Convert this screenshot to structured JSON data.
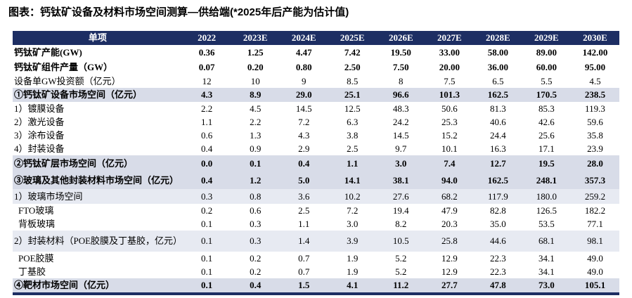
{
  "chart_data": {
    "type": "table",
    "title": "图表：钙钛矿设备及材料市场空间测算—供给端(*2025年后产能为估计值)",
    "columns": [
      "单项",
      "2022",
      "2023E",
      "2024E",
      "2025E",
      "2026E",
      "2027E",
      "2028E",
      "2029E",
      "2030E"
    ],
    "rows": [
      {
        "label": "钙钛矿产能(GW)",
        "values": [
          "0.36",
          "1.25",
          "4.47",
          "7.42",
          "19.50",
          "33.00",
          "58.00",
          "89.00",
          "142.00"
        ],
        "style": "bold"
      },
      {
        "label": "钙钛矿组件产量（GW）",
        "values": [
          "0.07",
          "0.20",
          "0.80",
          "2.50",
          "7.50",
          "20.00",
          "36.00",
          "60.00",
          "95.00"
        ],
        "style": "bold"
      },
      {
        "label": "设备单GW投资额（亿元）",
        "values": [
          "12",
          "10",
          "9",
          "8.5",
          "8",
          "7.5",
          "6.5",
          "5.5",
          "4.5"
        ],
        "style": "normal"
      },
      {
        "label": "①钙钛矿设备市场空间（亿元）",
        "values": [
          "4.3",
          "8.9",
          "29.0",
          "25.1",
          "96.6",
          "101.3",
          "162.5",
          "170.5",
          "238.5"
        ],
        "style": "section"
      },
      {
        "label": "1）镀膜设备",
        "values": [
          "2.2",
          "4.5",
          "14.5",
          "12.5",
          "48.3",
          "50.6",
          "81.3",
          "85.3",
          "119.3"
        ],
        "style": "normal"
      },
      {
        "label": "2）激光设备",
        "values": [
          "1.1",
          "2.2",
          "7.2",
          "6.3",
          "24.2",
          "25.3",
          "40.6",
          "42.6",
          "59.6"
        ],
        "style": "normal"
      },
      {
        "label": "3）涂布设备",
        "values": [
          "0.6",
          "1.3",
          "4.3",
          "3.8",
          "14.5",
          "15.2",
          "24.4",
          "25.6",
          "35.8"
        ],
        "style": "normal"
      },
      {
        "label": "4）封装设备",
        "values": [
          "0.4",
          "0.9",
          "2.9",
          "2.5",
          "9.7",
          "10.1",
          "16.3",
          "17.1",
          "23.9"
        ],
        "style": "normal"
      },
      {
        "label": "②钙钛矿层市场空间（亿元）",
        "values": [
          "0.0",
          "0.1",
          "0.4",
          "1.1",
          "3.0",
          "7.4",
          "12.7",
          "19.5",
          "28.0"
        ],
        "style": "section-tall"
      },
      {
        "label": "③玻璃及其他封装材料市场空间（亿元）",
        "values": [
          "0.4",
          "1.2",
          "5.0",
          "14.1",
          "38.1",
          "94.0",
          "162.5",
          "248.1",
          "357.3"
        ],
        "style": "section-tall"
      },
      {
        "label": "1）玻璃市场空间",
        "values": [
          "0.3",
          "0.8",
          "3.6",
          "10.2",
          "27.6",
          "68.2",
          "117.9",
          "180.0",
          "259.2"
        ],
        "style": "subsection"
      },
      {
        "label": "FTO玻璃",
        "values": [
          "0.2",
          "0.6",
          "2.5",
          "7.2",
          "19.4",
          "47.9",
          "82.8",
          "126.5",
          "182.2"
        ],
        "style": "indent"
      },
      {
        "label": "背板玻璃",
        "values": [
          "0.1",
          "0.3",
          "1.1",
          "3.0",
          "8.2",
          "20.3",
          "35.0",
          "53.5",
          "77.1"
        ],
        "style": "indent"
      },
      {
        "label": "2）封装材料（POE胶膜及丁基胶，亿元）",
        "values": [
          "0.1",
          "0.3",
          "1.4",
          "3.9",
          "10.5",
          "25.8",
          "44.6",
          "68.1",
          "98.1"
        ],
        "style": "subsection-tall"
      },
      {
        "label": "POE胶膜",
        "values": [
          "0.1",
          "0.2",
          "0.7",
          "1.9",
          "5.2",
          "12.9",
          "22.3",
          "34.1",
          "49.0"
        ],
        "style": "indent"
      },
      {
        "label": "丁基胶",
        "values": [
          "0.1",
          "0.2",
          "0.7",
          "1.9",
          "5.2",
          "12.9",
          "22.3",
          "34.1",
          "49.0"
        ],
        "style": "indent"
      },
      {
        "label": "④靶材市场空间（亿元）",
        "values": [
          "0.1",
          "0.4",
          "1.5",
          "4.1",
          "11.2",
          "27.7",
          "47.8",
          "73.0",
          "105.1"
        ],
        "style": "section"
      }
    ],
    "colors": {
      "header_bg": "#1d2e63",
      "header_text": "#ffffff",
      "section_row_bg": "#d8dce8",
      "subsection_row_bg": "#e7eaf2",
      "bottom_border": "#1d2e63"
    }
  }
}
